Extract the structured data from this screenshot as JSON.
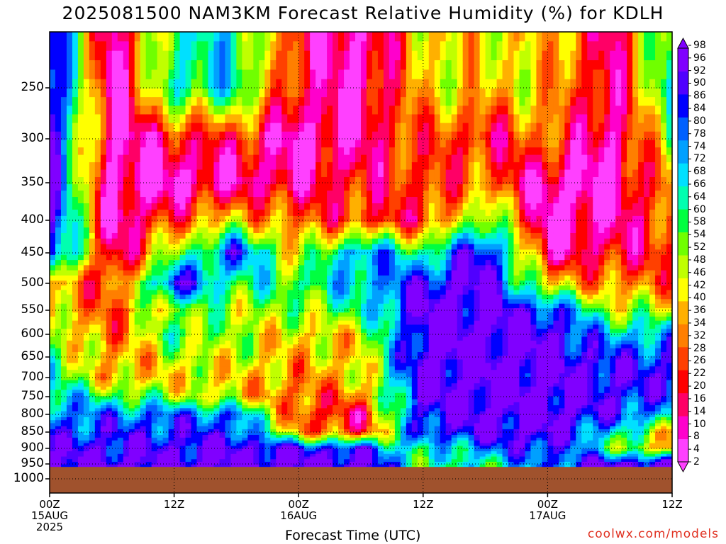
{
  "title": "2025081500 NAM3KM Forecast Relative Humidity (%) for KDLH",
  "chart_data": {
    "type": "heatmap",
    "title": "2025081500 NAM3KM Forecast Relative Humidity (%) for KDLH",
    "xlabel": "Forecast Time (UTC)",
    "ylabel": "",
    "x_ticks": [
      {
        "time": "00Z",
        "date": "15AUG",
        "year": "2025"
      },
      {
        "time": "12Z",
        "date": "",
        "year": ""
      },
      {
        "time": "00Z",
        "date": "16AUG",
        "year": ""
      },
      {
        "time": "12Z",
        "date": "",
        "year": ""
      },
      {
        "time": "00Z",
        "date": "17AUG",
        "year": ""
      },
      {
        "time": "12Z",
        "date": "",
        "year": ""
      }
    ],
    "x_hours_range": [
      0,
      60
    ],
    "y_ticks": [
      250,
      300,
      350,
      400,
      450,
      500,
      550,
      600,
      650,
      700,
      750,
      800,
      850,
      900,
      950,
      1000
    ],
    "y_range_hpa": [
      200,
      1050
    ],
    "surface_pressure_hpa": 960,
    "grid": true,
    "colorbar": {
      "labels": [
        "98",
        "96",
        "92",
        "90",
        "86",
        "84",
        "80",
        "78",
        "74",
        "72",
        "68",
        "66",
        "64",
        "60",
        "58",
        "54",
        "52",
        "48",
        "46",
        "42",
        "40",
        "36",
        "34",
        "32",
        "28",
        "26",
        "22",
        "20",
        "16",
        "14",
        "10",
        "8",
        "4",
        "2"
      ],
      "colors_bottom_to_top": [
        "#ff40ff",
        "#ff00cc",
        "#ff0066",
        "#ff0000",
        "#ff4000",
        "#ff7f00",
        "#ffb000",
        "#ffff00",
        "#c0ff00",
        "#70ff00",
        "#00ff40",
        "#00ffb0",
        "#00e0ff",
        "#00a0ff",
        "#0060ff",
        "#0000ff",
        "#5000ff",
        "#8000ff"
      ],
      "extend": "both",
      "placement": "right"
    },
    "series": [
      {
        "hour": 0,
        "rh_by_level": [
          98,
          98,
          98,
          98,
          98,
          40,
          40,
          50,
          60,
          64,
          72,
          80,
          84,
          90,
          96,
          98
        ]
      },
      {
        "hour": 6,
        "rh_by_level": [
          4,
          4,
          4,
          4,
          8,
          20,
          26,
          28,
          32,
          36,
          60,
          78,
          86,
          92,
          96,
          98
        ]
      },
      {
        "hour": 12,
        "rh_by_level": [
          64,
          16,
          4,
          26,
          50,
          90,
          54,
          58,
          46,
          40,
          50,
          80,
          86,
          92,
          96,
          98
        ]
      },
      {
        "hour": 18,
        "rh_by_level": [
          66,
          20,
          10,
          40,
          86,
          60,
          50,
          48,
          46,
          40,
          42,
          78,
          86,
          96,
          98,
          98
        ]
      },
      {
        "hour": 24,
        "rh_by_level": [
          16,
          4,
          10,
          28,
          40,
          60,
          50,
          40,
          36,
          32,
          26,
          24,
          34,
          90,
          98,
          98
        ]
      },
      {
        "hour": 30,
        "rh_by_level": [
          4,
          10,
          20,
          22,
          80,
          72,
          60,
          42,
          40,
          40,
          30,
          16,
          20,
          86,
          98,
          98
        ]
      },
      {
        "hour": 36,
        "rh_by_level": [
          40,
          28,
          22,
          20,
          60,
          90,
          96,
          98,
          98,
          96,
          96,
          90,
          86,
          60,
          60,
          60
        ]
      },
      {
        "hour": 42,
        "rh_by_level": [
          40,
          16,
          30,
          60,
          96,
          98,
          98,
          98,
          98,
          98,
          98,
          96,
          94,
          80,
          64,
          60
        ]
      },
      {
        "hour": 48,
        "rh_by_level": [
          40,
          30,
          4,
          4,
          10,
          40,
          86,
          96,
          98,
          98,
          98,
          98,
          96,
          90,
          80,
          70
        ]
      },
      {
        "hour": 54,
        "rh_by_level": [
          10,
          4,
          4,
          8,
          16,
          30,
          50,
          72,
          86,
          92,
          90,
          88,
          70,
          60,
          96,
          98
        ]
      },
      {
        "hour": 60,
        "rh_by_level": [
          66,
          54,
          32,
          26,
          22,
          30,
          46,
          72,
          86,
          90,
          84,
          70,
          40,
          30,
          96,
          98
        ]
      }
    ]
  },
  "x_axis_label": "Forecast Time (UTC)",
  "credit": "coolwx.com/models"
}
